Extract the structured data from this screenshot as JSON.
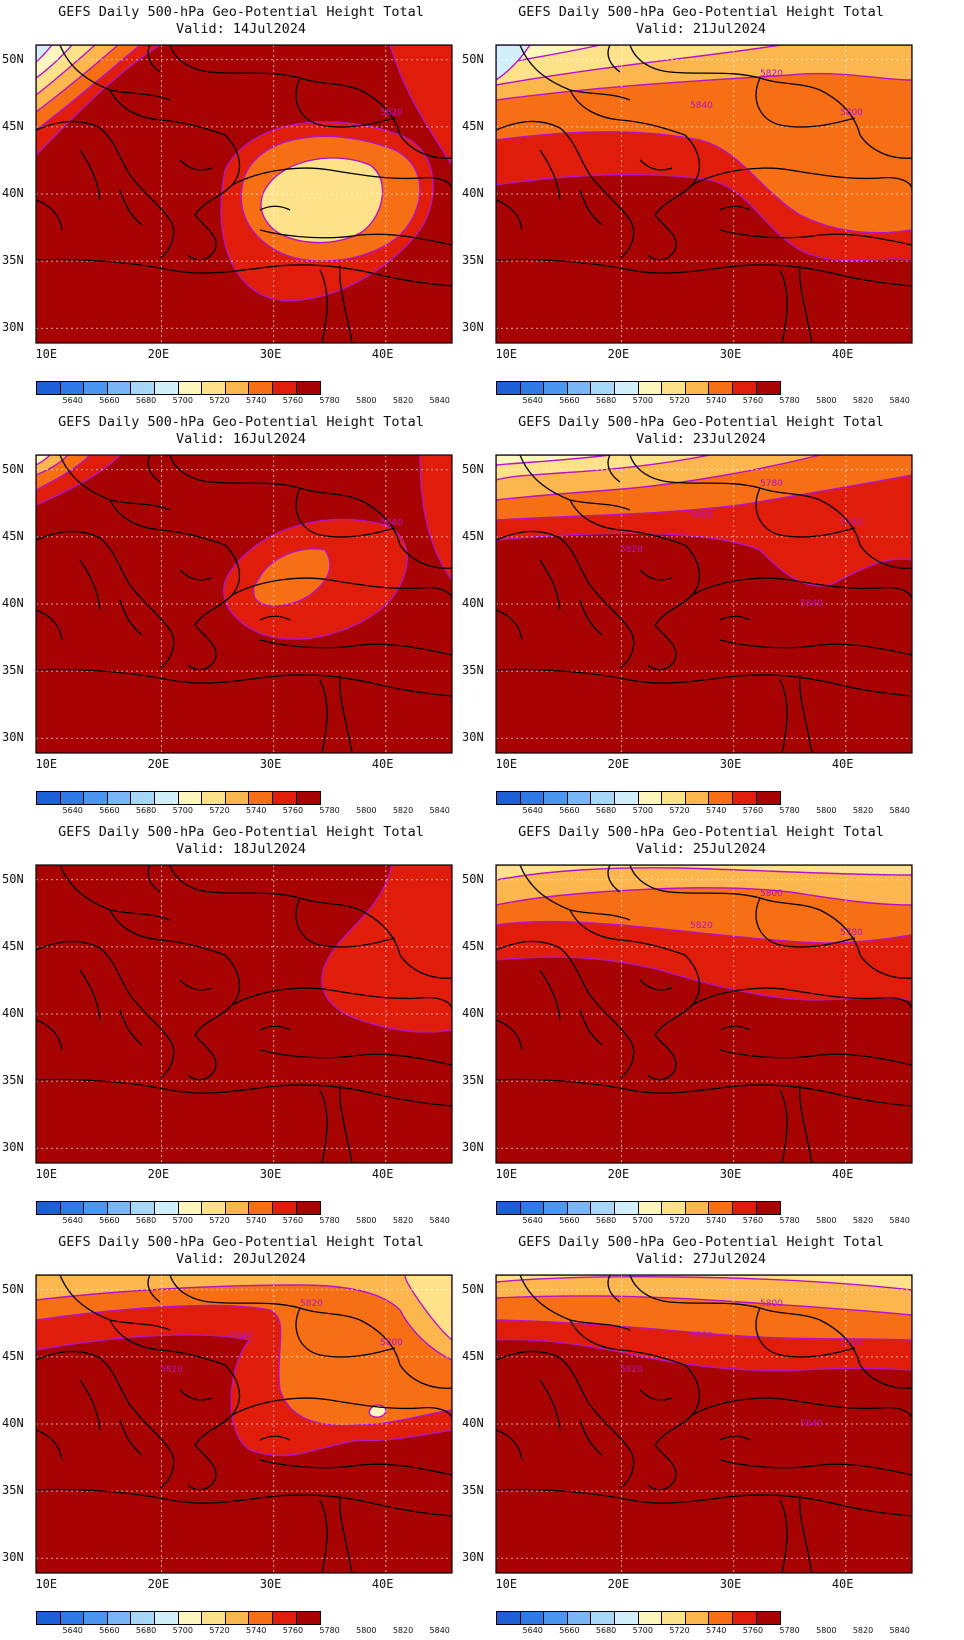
{
  "title_line1": "GEFS Daily 500-hPa Geo-Potential Height Total",
  "valid_prefix": "Valid: ",
  "panels": [
    {
      "date": "14Jul2024",
      "contour_labels": [
        "5820"
      ]
    },
    {
      "date": "21Jul2024",
      "contour_labels": [
        "5800",
        "5820",
        "5840"
      ]
    },
    {
      "date": "16Jul2024",
      "contour_labels": [
        "5840"
      ]
    },
    {
      "date": "23Jul2024",
      "contour_labels": [
        "5760",
        "5780",
        "5800",
        "5820",
        "5840"
      ]
    },
    {
      "date": "18Jul2024",
      "contour_labels": []
    },
    {
      "date": "25Jul2024",
      "contour_labels": [
        "5780",
        "5800",
        "5820"
      ]
    },
    {
      "date": "20Jul2024",
      "contour_labels": [
        "5800",
        "5820",
        "5840",
        "5820"
      ]
    },
    {
      "date": "27Jul2024",
      "contour_labels": [
        "5780",
        "5800",
        "5800",
        "5820",
        "5840"
      ]
    }
  ],
  "lat_ticks": [
    "50N",
    "45N",
    "40N",
    "35N",
    "30N"
  ],
  "lon_ticks": [
    "10E",
    "20E",
    "30E",
    "40E"
  ],
  "colorbar": {
    "labels": [
      "5640",
      "5660",
      "5680",
      "5700",
      "5720",
      "5740",
      "5760",
      "5780",
      "5800",
      "5820",
      "5840"
    ],
    "colors": [
      "#1c5fd6",
      "#2e7ae6",
      "#4a96f0",
      "#7ab6f5",
      "#a6d6f8",
      "#d2f0fc",
      "#fdf6bd",
      "#fde28a",
      "#fbb64d",
      "#f76f15",
      "#e01d0a",
      "#a80303"
    ]
  },
  "contour_color": "#b414c8"
}
